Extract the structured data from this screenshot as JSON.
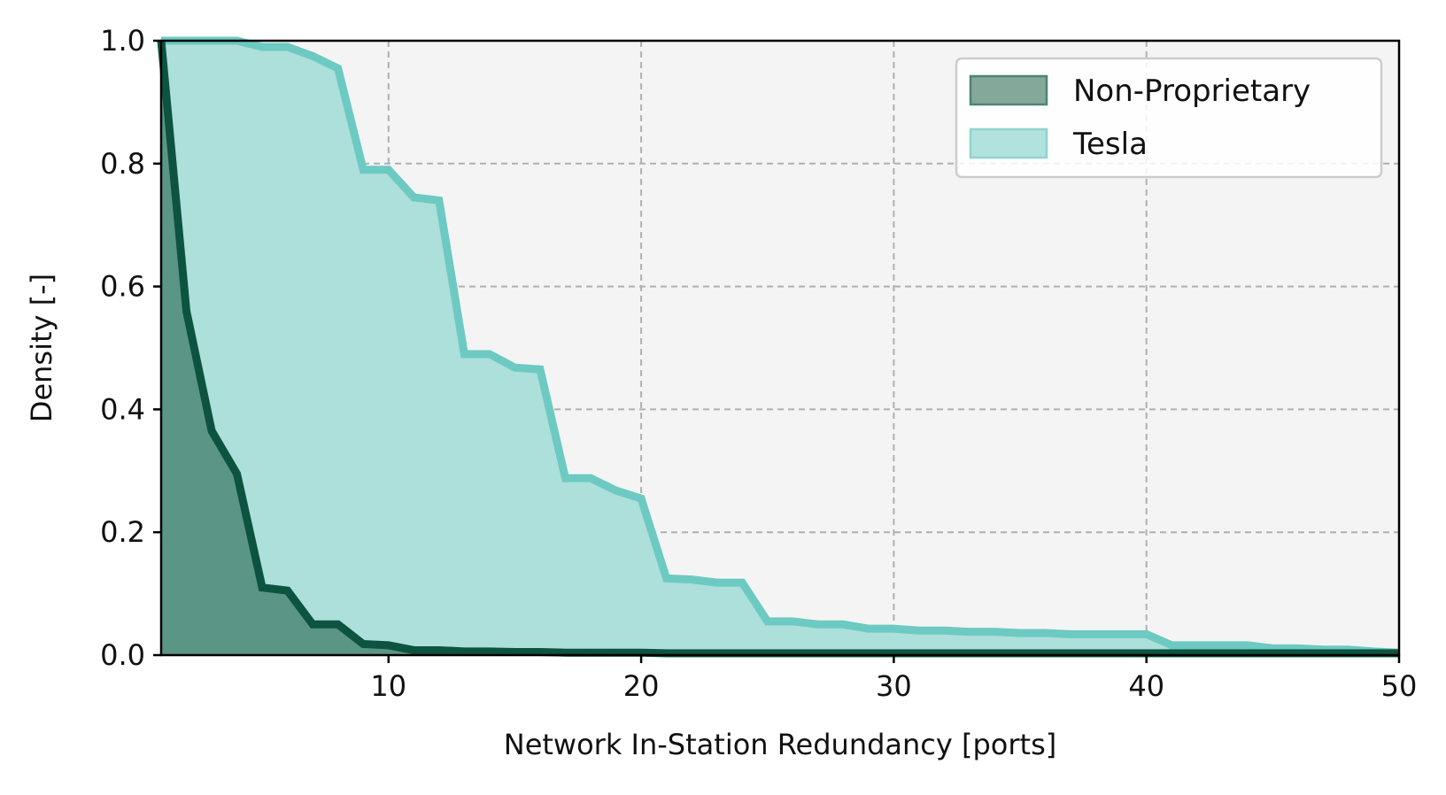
{
  "chart_data": {
    "type": "area",
    "xlabel": "Network In-Station Redundancy [ports]",
    "ylabel": "Density [-]",
    "xlim": [
      1,
      50
    ],
    "ylim": [
      0,
      1.0
    ],
    "xticks": [
      10,
      20,
      30,
      40,
      50
    ],
    "xtick_labels": [
      "10",
      "20",
      "30",
      "40",
      "50"
    ],
    "yticks": [
      0.0,
      0.2,
      0.4,
      0.6,
      0.8,
      1.0
    ],
    "ytick_labels": [
      "0.0",
      "0.2",
      "0.4",
      "0.6",
      "0.8",
      "1.0"
    ],
    "grid": true,
    "legend_position": "top-right",
    "background": "#f4f4f4",
    "series": [
      {
        "name": "Tesla",
        "line_color": "#6ccac2",
        "fill_color": "#addfdb",
        "x": [
          1,
          2,
          3,
          4,
          5,
          6,
          7,
          8,
          9,
          10,
          11,
          12,
          13,
          14,
          15,
          16,
          17,
          18,
          19,
          20,
          21,
          22,
          23,
          24,
          25,
          26,
          27,
          28,
          29,
          30,
          31,
          32,
          33,
          34,
          35,
          36,
          37,
          38,
          39,
          40,
          41,
          42,
          43,
          44,
          45,
          46,
          47,
          48,
          49,
          50
        ],
        "y": [
          1.0,
          1.0,
          1.0,
          1.0,
          0.99,
          0.99,
          0.975,
          0.955,
          0.79,
          0.79,
          0.745,
          0.74,
          0.49,
          0.49,
          0.468,
          0.465,
          0.288,
          0.288,
          0.268,
          0.255,
          0.125,
          0.123,
          0.118,
          0.118,
          0.055,
          0.055,
          0.05,
          0.05,
          0.043,
          0.043,
          0.04,
          0.04,
          0.038,
          0.038,
          0.036,
          0.036,
          0.034,
          0.034,
          0.034,
          0.034,
          0.016,
          0.016,
          0.016,
          0.016,
          0.011,
          0.011,
          0.009,
          0.009,
          0.006,
          0.004
        ]
      },
      {
        "name": "Non-Proprietary",
        "line_color": "#0c5440",
        "fill_color": "#5b9585",
        "x": [
          1,
          2,
          3,
          4,
          5,
          6,
          7,
          8,
          9,
          10,
          11,
          12,
          13,
          14,
          15,
          16,
          17,
          18,
          19,
          20,
          21,
          22,
          23,
          24,
          25,
          26,
          27,
          28,
          29,
          30,
          31,
          32,
          33,
          34,
          35,
          36,
          37,
          38,
          39,
          40,
          41,
          42,
          43,
          44,
          45,
          46,
          47,
          48,
          49,
          50
        ],
        "y": [
          1.0,
          0.56,
          0.365,
          0.295,
          0.11,
          0.105,
          0.05,
          0.05,
          0.018,
          0.016,
          0.008,
          0.008,
          0.006,
          0.006,
          0.005,
          0.005,
          0.004,
          0.004,
          0.004,
          0.004,
          0.003,
          0.003,
          0.003,
          0.003,
          0.003,
          0.003,
          0.003,
          0.003,
          0.003,
          0.003,
          0.003,
          0.003,
          0.003,
          0.003,
          0.003,
          0.003,
          0.003,
          0.003,
          0.003,
          0.003,
          0.003,
          0.003,
          0.003,
          0.003,
          0.003,
          0.003,
          0.003,
          0.003,
          0.003,
          0.003
        ]
      }
    ],
    "legend": [
      {
        "label": "Non-Proprietary",
        "fill_color": "#84a89a",
        "edge_color": "#4e8474"
      },
      {
        "label": "Tesla",
        "fill_color": "#b2e2de",
        "edge_color": "#8fd4ce"
      }
    ]
  }
}
